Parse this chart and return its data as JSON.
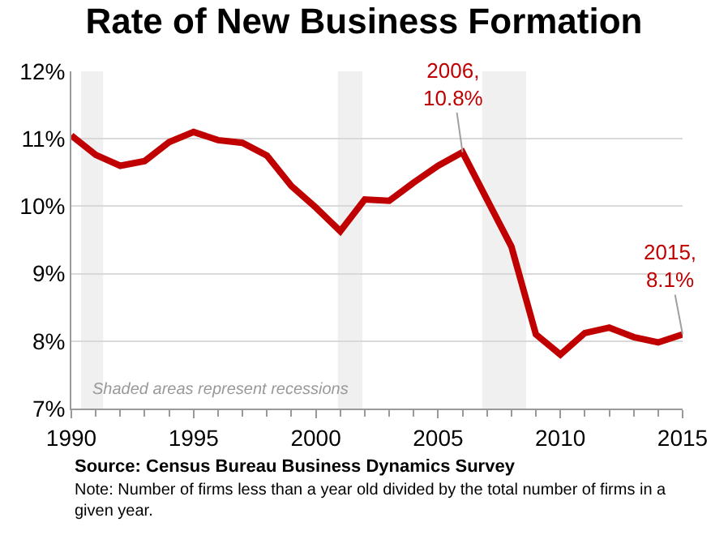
{
  "chart_data": {
    "type": "line",
    "title": "Rate of New Business Formation",
    "x": [
      1990,
      1991,
      1992,
      1993,
      1994,
      1995,
      1996,
      1997,
      1998,
      1999,
      2000,
      2001,
      2002,
      2003,
      2004,
      2005,
      2006,
      2007,
      2008,
      2009,
      2010,
      2011,
      2012,
      2013,
      2014,
      2015
    ],
    "series": [
      {
        "color": "#c00000",
        "values": [
          11.05,
          10.76,
          10.6,
          10.67,
          10.95,
          11.1,
          10.98,
          10.94,
          10.75,
          10.3,
          9.98,
          9.63,
          10.1,
          10.08,
          10.35,
          10.6,
          10.8,
          10.1,
          9.4,
          8.1,
          7.8,
          8.12,
          8.2,
          8.06,
          7.98,
          8.1
        ]
      }
    ],
    "xlim": [
      1990,
      2015
    ],
    "xticks": [
      1990,
      1995,
      2000,
      2005,
      2010,
      2015
    ],
    "ylim": [
      7,
      12
    ],
    "yticks": [
      {
        "value": 7,
        "label": "7%"
      },
      {
        "value": 8,
        "label": "8%"
      },
      {
        "value": 9,
        "label": "9%"
      },
      {
        "value": 10,
        "label": "10%"
      },
      {
        "value": 11,
        "label": "11%"
      },
      {
        "value": 12,
        "label": "12%"
      }
    ],
    "grid": "y",
    "marker": "none",
    "line_style": "solid",
    "bands": [
      {
        "axis": "x",
        "from": 1990.4,
        "to": 1991.3,
        "color": "#f0f0f0"
      },
      {
        "axis": "x",
        "from": 2000.9,
        "to": 2001.9,
        "color": "#f0f0f0"
      },
      {
        "axis": "x",
        "from": 2006.8,
        "to": 2008.6,
        "color": "#f0f0f0"
      }
    ],
    "annotations": [
      {
        "text": "2006,\n10.8%",
        "x": 2006,
        "y": 10.8
      },
      {
        "text": "2015,\n8.1%",
        "x": 2015,
        "y": 8.1
      },
      "Shaded areas represent recessions",
      "Source: Census Bureau Business Dynamics Survey",
      "Note: Number of firms less than a year old divided by the total number of firms in a\ngiven year."
    ]
  }
}
